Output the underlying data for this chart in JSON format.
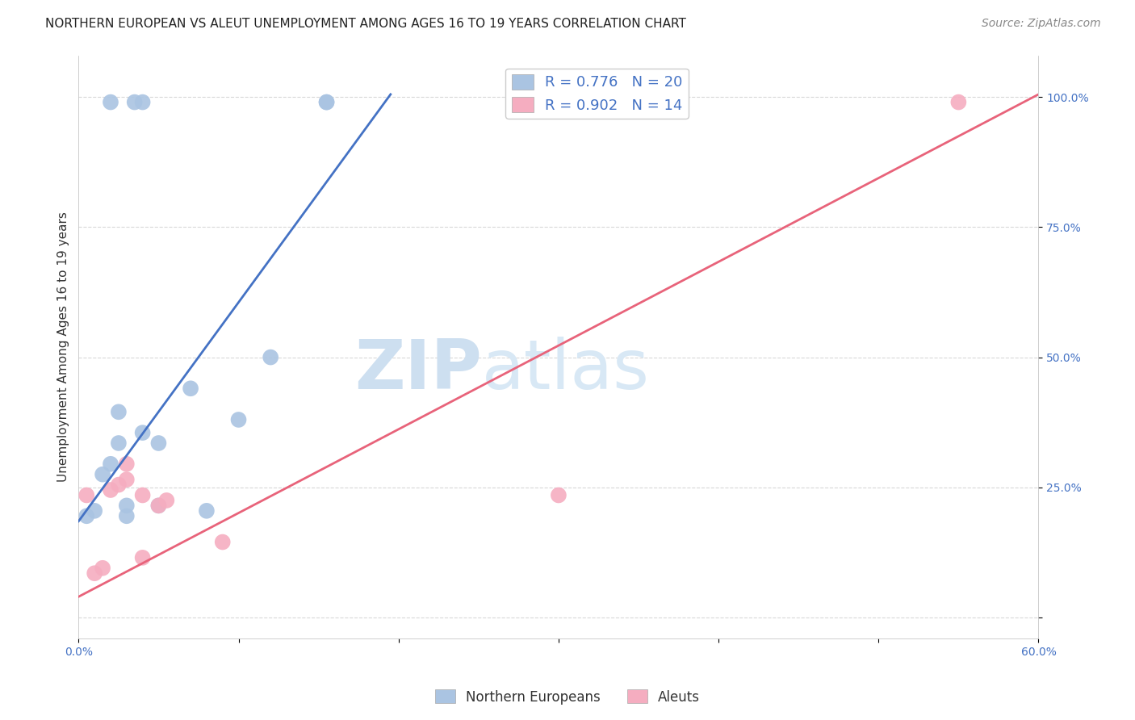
{
  "title": "NORTHERN EUROPEAN VS ALEUT UNEMPLOYMENT AMONG AGES 16 TO 19 YEARS CORRELATION CHART",
  "source": "Source: ZipAtlas.com",
  "ylabel": "Unemployment Among Ages 16 to 19 years",
  "xlim": [
    0.0,
    0.6
  ],
  "ylim": [
    -0.04,
    1.08
  ],
  "xticks": [
    0.0,
    0.1,
    0.2,
    0.3,
    0.4,
    0.5,
    0.6
  ],
  "xtick_labels": [
    "0.0%",
    "",
    "",
    "",
    "",
    "",
    "60.0%"
  ],
  "yticks": [
    0.0,
    0.25,
    0.5,
    0.75,
    1.0
  ],
  "ytick_labels": [
    "",
    "25.0%",
    "50.0%",
    "75.0%",
    "100.0%"
  ],
  "blue_color": "#aac4e2",
  "pink_color": "#f5adc0",
  "blue_line_color": "#4472c4",
  "pink_line_color": "#e8637a",
  "legend_r_blue": "R = 0.776",
  "legend_n_blue": "N = 20",
  "legend_r_pink": "R = 0.902",
  "legend_n_pink": "N = 14",
  "watermark_zip": "ZIP",
  "watermark_atlas": "atlas",
  "blue_scatter_x": [
    0.005,
    0.01,
    0.015,
    0.02,
    0.02,
    0.025,
    0.025,
    0.03,
    0.03,
    0.035,
    0.04,
    0.04,
    0.05,
    0.05,
    0.07,
    0.08,
    0.1,
    0.12,
    0.155,
    0.155
  ],
  "blue_scatter_y": [
    0.195,
    0.205,
    0.275,
    0.295,
    0.99,
    0.335,
    0.395,
    0.195,
    0.215,
    0.99,
    0.355,
    0.99,
    0.335,
    0.215,
    0.44,
    0.205,
    0.38,
    0.5,
    0.99,
    0.99
  ],
  "pink_scatter_x": [
    0.005,
    0.01,
    0.015,
    0.02,
    0.025,
    0.03,
    0.03,
    0.04,
    0.04,
    0.05,
    0.055,
    0.09,
    0.3,
    0.55
  ],
  "pink_scatter_y": [
    0.235,
    0.085,
    0.095,
    0.245,
    0.255,
    0.265,
    0.295,
    0.115,
    0.235,
    0.215,
    0.225,
    0.145,
    0.235,
    0.99
  ],
  "blue_line_x": [
    0.0,
    0.195
  ],
  "blue_line_y": [
    0.185,
    1.005
  ],
  "pink_line_x": [
    0.0,
    0.6
  ],
  "pink_line_y": [
    0.04,
    1.005
  ],
  "title_fontsize": 11,
  "axis_label_fontsize": 11,
  "tick_fontsize": 10,
  "legend_fontsize": 13,
  "source_fontsize": 10,
  "background_color": "#ffffff",
  "grid_color": "#d8d8d8"
}
